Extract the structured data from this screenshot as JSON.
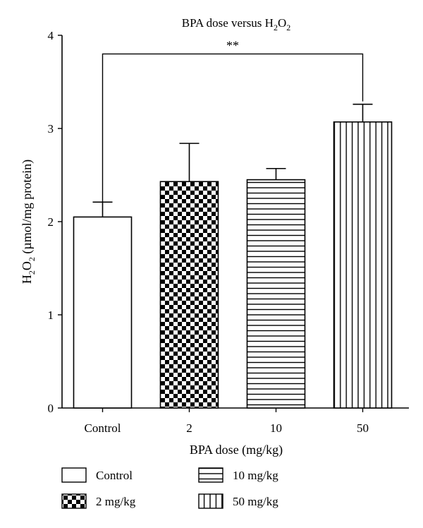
{
  "chart_data": {
    "type": "bar",
    "title_pre": "BPA dose versus H",
    "title_sub1": "2",
    "title_mid": "O",
    "title_sub2": "2",
    "xlabel": "BPA dose (mg/kg)",
    "ylabel_pre": "H",
    "ylabel_sub1": "2",
    "ylabel_mid": "O",
    "ylabel_sub2": "2",
    "ylabel_post": " (µmol/mg protein)",
    "ylim": [
      0,
      4
    ],
    "yticks": [
      "0",
      "1",
      "2",
      "3",
      "4"
    ],
    "categories": [
      "Control",
      "2",
      "10",
      "50"
    ],
    "values": [
      2.05,
      2.43,
      2.45,
      3.07
    ],
    "errors": [
      0.16,
      0.41,
      0.12,
      0.19
    ],
    "patterns": [
      "none",
      "checker",
      "horizontal",
      "vertical"
    ],
    "significance": {
      "from": 0,
      "to": 3,
      "label": "**",
      "level": 3.8
    },
    "legend": [
      {
        "label": "Control",
        "pattern": "none"
      },
      {
        "label": "10 mg/kg",
        "pattern": "horizontal"
      },
      {
        "label": "2 mg/kg",
        "pattern": "checker"
      },
      {
        "label": "50 mg/kg",
        "pattern": "vertical"
      }
    ],
    "legend_placement": "bottom",
    "grid": false
  }
}
